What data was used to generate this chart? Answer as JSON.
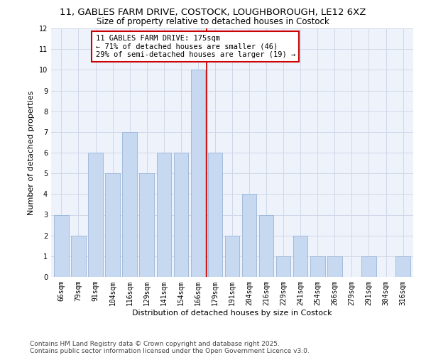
{
  "title1": "11, GABLES FARM DRIVE, COSTOCK, LOUGHBOROUGH, LE12 6XZ",
  "title2": "Size of property relative to detached houses in Costock",
  "xlabel": "Distribution of detached houses by size in Costock",
  "ylabel": "Number of detached properties",
  "categories": [
    "66sqm",
    "79sqm",
    "91sqm",
    "104sqm",
    "116sqm",
    "129sqm",
    "141sqm",
    "154sqm",
    "166sqm",
    "179sqm",
    "191sqm",
    "204sqm",
    "216sqm",
    "229sqm",
    "241sqm",
    "254sqm",
    "266sqm",
    "279sqm",
    "291sqm",
    "304sqm",
    "316sqm"
  ],
  "values": [
    3,
    2,
    6,
    5,
    7,
    5,
    6,
    6,
    10,
    6,
    2,
    4,
    3,
    1,
    2,
    1,
    1,
    0,
    1,
    0,
    1
  ],
  "bar_color": "#c6d9f1",
  "bar_edgecolor": "#9ab5d8",
  "vline_index": 8,
  "annotation_text": "11 GABLES FARM DRIVE: 175sqm\n← 71% of detached houses are smaller (46)\n29% of semi-detached houses are larger (19) →",
  "annotation_box_edgecolor": "#cc0000",
  "vline_color": "#cc0000",
  "ylim": [
    0,
    12
  ],
  "yticks": [
    0,
    1,
    2,
    3,
    4,
    5,
    6,
    7,
    8,
    9,
    10,
    11,
    12
  ],
  "grid_color": "#d0d8e8",
  "bg_color": "#eef2fb",
  "footer": "Contains HM Land Registry data © Crown copyright and database right 2025.\nContains public sector information licensed under the Open Government Licence v3.0.",
  "title_fontsize": 9.5,
  "subtitle_fontsize": 8.5,
  "annotation_fontsize": 7.5,
  "axis_label_fontsize": 8,
  "tick_fontsize": 7,
  "footer_fontsize": 6.5
}
